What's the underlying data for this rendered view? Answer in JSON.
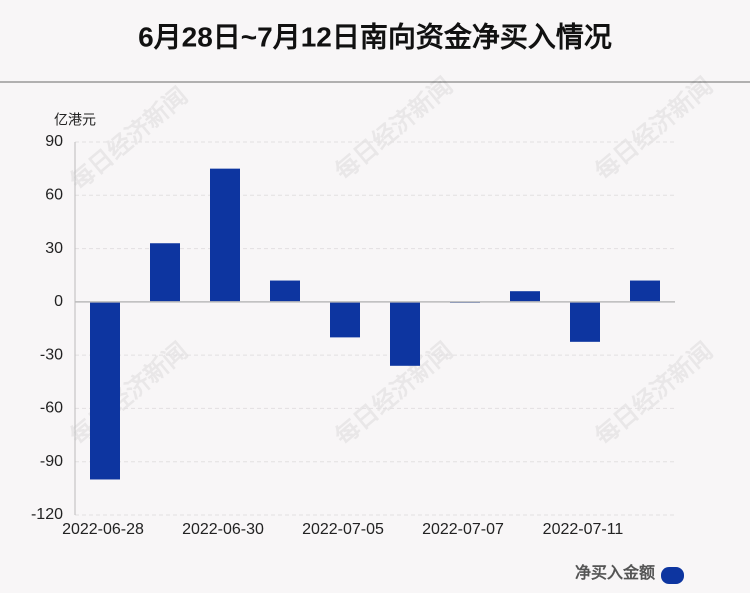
{
  "chart_data": {
    "type": "bar",
    "title": "6月28日~7月12日南向资金净买入情况",
    "y_axis_unit": "亿港元",
    "watermark": "每日经济新闻",
    "categories": [
      "2022-06-28",
      null,
      "2022-06-30",
      null,
      "2022-07-05",
      null,
      "2022-07-07",
      null,
      "2022-07-11",
      null
    ],
    "series": [
      {
        "name": "净买入金额",
        "color": "#0d35a0",
        "values": [
          -100,
          33,
          75,
          12,
          -20,
          -36,
          -0.5,
          6,
          -22.5,
          12
        ]
      }
    ],
    "ylim": [
      -120,
      90
    ],
    "yticks": [
      -120,
      -90,
      -60,
      -30,
      0,
      30,
      60,
      90
    ],
    "grid": true,
    "legend": "bottom-right"
  }
}
